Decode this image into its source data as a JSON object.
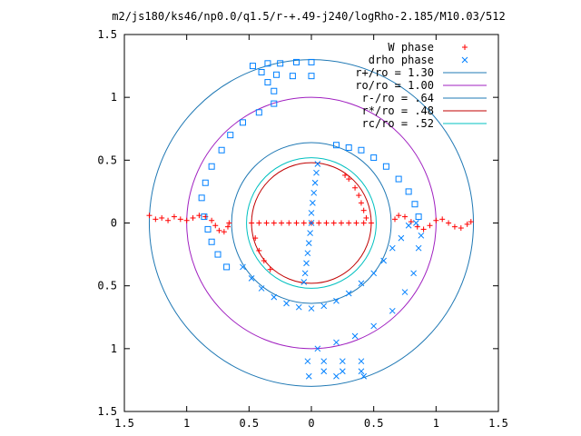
{
  "chart_data": {
    "type": "scatter",
    "title": "m2/js180/ks46/np0.0/q1.5/r-+.49-j240/logRho-2.185/M10.03/512",
    "xlabel": "",
    "ylabel": "",
    "xlim": [
      -1.5,
      1.5
    ],
    "ylim": [
      -1.5,
      1.5
    ],
    "grid": false,
    "legend_position": "top-right",
    "x_tick_labels": [
      "1.5",
      "1",
      "0.5",
      "0",
      "0.5",
      "1",
      "1.5"
    ],
    "x_tick_values": [
      -1.5,
      -1,
      -0.5,
      0,
      0.5,
      1,
      1.5
    ],
    "y_tick_labels": [
      "1.5",
      "1",
      "0.5",
      "0",
      "0.5",
      "1",
      "1.5"
    ],
    "y_tick_values": [
      1.5,
      1,
      0.5,
      0,
      -0.5,
      -1,
      -1.5
    ],
    "series": [
      {
        "name": "W phase",
        "marker": "+",
        "color": "#ff0000",
        "points": [
          [
            -1.3,
            0.06
          ],
          [
            -1.25,
            0.03
          ],
          [
            -1.2,
            0.04
          ],
          [
            -1.15,
            0.02
          ],
          [
            -1.1,
            0.05
          ],
          [
            -1.05,
            0.03
          ],
          [
            -1.0,
            0.02
          ],
          [
            -0.95,
            0.04
          ],
          [
            -0.9,
            0.06
          ],
          [
            -0.85,
            0.05
          ],
          [
            -0.8,
            0.02
          ],
          [
            -0.77,
            -0.02
          ],
          [
            -0.74,
            -0.06
          ],
          [
            -0.7,
            -0.07
          ],
          [
            -0.67,
            -0.03
          ],
          [
            -0.66,
            0.0
          ],
          [
            0.67,
            0.03
          ],
          [
            0.7,
            0.06
          ],
          [
            0.75,
            0.05
          ],
          [
            0.8,
            0.01
          ],
          [
            0.85,
            -0.03
          ],
          [
            0.9,
            -0.05
          ],
          [
            0.95,
            -0.02
          ],
          [
            1.0,
            0.02
          ],
          [
            1.05,
            0.03
          ],
          [
            1.1,
            0.0
          ],
          [
            1.15,
            -0.03
          ],
          [
            1.2,
            -0.04
          ],
          [
            1.25,
            -0.01
          ],
          [
            1.28,
            0.01
          ],
          [
            -0.48,
            0.0
          ],
          [
            -0.42,
            0.0
          ],
          [
            -0.36,
            0.0
          ],
          [
            -0.3,
            0.0
          ],
          [
            -0.24,
            0.0
          ],
          [
            -0.18,
            0.0
          ],
          [
            -0.12,
            0.0
          ],
          [
            -0.06,
            0.0
          ],
          [
            0.0,
            0.0
          ],
          [
            0.06,
            0.0
          ],
          [
            0.12,
            0.0
          ],
          [
            0.18,
            0.0
          ],
          [
            0.24,
            0.0
          ],
          [
            0.3,
            0.0
          ],
          [
            0.36,
            0.0
          ],
          [
            0.42,
            0.0
          ],
          [
            0.48,
            0.0
          ],
          [
            -0.45,
            -0.12
          ],
          [
            -0.42,
            -0.22
          ],
          [
            -0.38,
            -0.3
          ],
          [
            -0.33,
            -0.37
          ],
          [
            0.27,
            0.38
          ],
          [
            0.3,
            0.35
          ],
          [
            0.35,
            0.28
          ],
          [
            0.38,
            0.22
          ],
          [
            0.4,
            0.16
          ],
          [
            0.42,
            0.1
          ],
          [
            0.44,
            0.04
          ]
        ]
      },
      {
        "name": "drho phase",
        "marker": "x",
        "color": "#0080ff",
        "points": [
          [
            0.05,
            0.47
          ],
          [
            0.04,
            0.4
          ],
          [
            0.03,
            0.32
          ],
          [
            0.02,
            0.24
          ],
          [
            0.01,
            0.16
          ],
          [
            0.0,
            0.08
          ],
          [
            0.0,
            0.0
          ],
          [
            -0.01,
            -0.08
          ],
          [
            -0.02,
            -0.16
          ],
          [
            -0.03,
            -0.24
          ],
          [
            -0.04,
            -0.32
          ],
          [
            -0.05,
            -0.4
          ],
          [
            -0.06,
            -0.47
          ],
          [
            -0.55,
            -0.35
          ],
          [
            -0.48,
            -0.44
          ],
          [
            -0.4,
            -0.52
          ],
          [
            -0.3,
            -0.59
          ],
          [
            -0.2,
            -0.64
          ],
          [
            -0.1,
            -0.67
          ],
          [
            0.0,
            -0.68
          ],
          [
            0.1,
            -0.66
          ],
          [
            0.2,
            -0.62
          ],
          [
            0.3,
            -0.56
          ],
          [
            0.4,
            -0.48
          ],
          [
            0.5,
            -0.4
          ],
          [
            0.58,
            -0.3
          ],
          [
            0.65,
            -0.2
          ],
          [
            0.72,
            -0.12
          ],
          [
            0.78,
            -0.02
          ],
          [
            0.84,
            0.0
          ],
          [
            0.88,
            -0.1
          ],
          [
            0.86,
            -0.2
          ],
          [
            0.82,
            -0.4
          ],
          [
            0.75,
            -0.55
          ],
          [
            0.65,
            -0.7
          ],
          [
            0.5,
            -0.82
          ],
          [
            0.35,
            -0.9
          ],
          [
            0.2,
            -0.95
          ],
          [
            0.05,
            -1.0
          ],
          [
            -0.03,
            -1.1
          ],
          [
            0.1,
            -1.1
          ],
          [
            0.25,
            -1.1
          ],
          [
            0.4,
            -1.1
          ],
          [
            0.1,
            -1.18
          ],
          [
            0.25,
            -1.18
          ],
          [
            0.4,
            -1.18
          ],
          [
            -0.02,
            -1.22
          ],
          [
            0.2,
            -1.22
          ],
          [
            0.42,
            -1.22
          ]
        ]
      },
      {
        "name": "drho phase",
        "marker": "square",
        "color": "#0080ff",
        "points": [
          [
            -0.47,
            1.25
          ],
          [
            -0.35,
            1.27
          ],
          [
            -0.25,
            1.27
          ],
          [
            -0.12,
            1.28
          ],
          [
            0.0,
            1.28
          ],
          [
            -0.4,
            1.2
          ],
          [
            -0.28,
            1.18
          ],
          [
            -0.15,
            1.17
          ],
          [
            0.0,
            1.17
          ],
          [
            -0.35,
            1.12
          ],
          [
            -0.3,
            1.05
          ],
          [
            -0.3,
            0.95
          ],
          [
            -0.42,
            0.88
          ],
          [
            -0.55,
            0.8
          ],
          [
            -0.65,
            0.7
          ],
          [
            -0.72,
            0.58
          ],
          [
            -0.8,
            0.45
          ],
          [
            -0.85,
            0.32
          ],
          [
            -0.88,
            0.2
          ],
          [
            -0.86,
            0.05
          ],
          [
            -0.83,
            -0.05
          ],
          [
            -0.8,
            -0.15
          ],
          [
            -0.75,
            -0.25
          ],
          [
            -0.68,
            -0.35
          ],
          [
            0.2,
            0.62
          ],
          [
            0.3,
            0.6
          ],
          [
            0.4,
            0.58
          ],
          [
            0.5,
            0.52
          ],
          [
            0.6,
            0.45
          ],
          [
            0.7,
            0.35
          ],
          [
            0.78,
            0.25
          ],
          [
            0.83,
            0.15
          ],
          [
            0.86,
            0.05
          ]
        ]
      },
      {
        "name": "r+/ro = 1.30",
        "type": "circle",
        "radius": 1.3,
        "color": "#1f78b4"
      },
      {
        "name": "ro/ro = 1.00",
        "type": "circle",
        "radius": 1.0,
        "color": "#a020c0"
      },
      {
        "name": "r-/ro = .64",
        "type": "circle",
        "radius": 0.64,
        "color": "#1f78b4"
      },
      {
        "name": "r*/ro = .48",
        "type": "circle",
        "radius": 0.48,
        "color": "#c00000"
      },
      {
        "name": "rc/ro = .52",
        "type": "circle",
        "radius": 0.52,
        "color": "#00c0c0"
      }
    ]
  }
}
